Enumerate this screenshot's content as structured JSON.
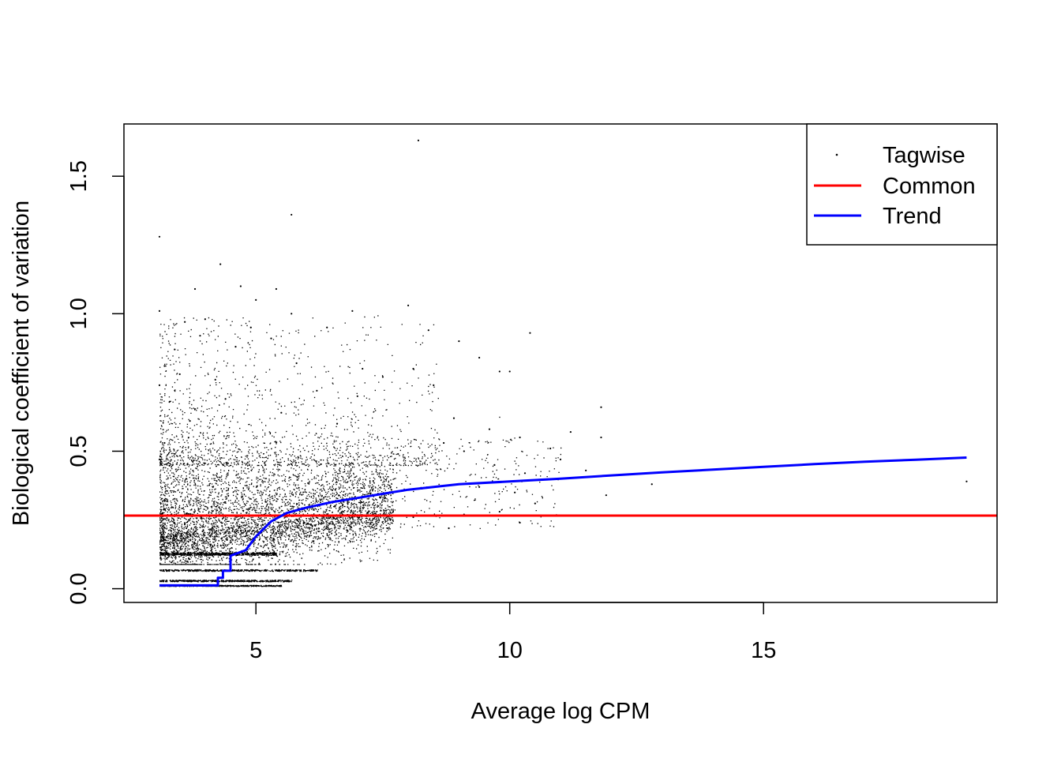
{
  "chart_data": {
    "type": "scatter",
    "title": "",
    "xlabel": "Average log CPM",
    "ylabel": "Biological coefficient of variation",
    "xlim": [
      2.4,
      19.6
    ],
    "ylim": [
      -0.05,
      1.69
    ],
    "x_ticks": [
      {
        "value": 5,
        "label": "5"
      },
      {
        "value": 10,
        "label": "10"
      },
      {
        "value": 15,
        "label": "15"
      }
    ],
    "y_ticks": [
      {
        "value": 0.0,
        "label": "0.0"
      },
      {
        "value": 0.5,
        "label": "0.5"
      },
      {
        "value": 1.0,
        "label": "1.0"
      },
      {
        "value": 1.5,
        "label": "1.5"
      }
    ],
    "grid": false,
    "legend_position": "top-right",
    "series": [
      {
        "name": "Tagwise",
        "kind": "points",
        "color": "#000000",
        "points": [
          [
            8.2,
            1.63
          ],
          [
            3.1,
            1.28
          ],
          [
            5.7,
            1.36
          ],
          [
            4.3,
            1.18
          ],
          [
            4.7,
            1.1
          ],
          [
            5.4,
            1.09
          ],
          [
            3.8,
            1.09
          ],
          [
            5.0,
            1.05
          ],
          [
            8.0,
            1.03
          ],
          [
            3.1,
            1.01
          ],
          [
            5.7,
            1.0
          ],
          [
            6.9,
            1.01
          ],
          [
            4.0,
            0.98
          ],
          [
            4.9,
            0.95
          ],
          [
            3.6,
            0.97
          ],
          [
            6.4,
            0.95
          ],
          [
            8.4,
            0.94
          ],
          [
            10.4,
            0.93
          ],
          [
            3.9,
            0.92
          ],
          [
            5.3,
            0.91
          ],
          [
            9.0,
            0.9
          ],
          [
            4.6,
            0.88
          ],
          [
            3.4,
            0.87
          ],
          [
            9.4,
            0.84
          ],
          [
            5.8,
            0.82
          ],
          [
            3.2,
            0.81
          ],
          [
            7.1,
            0.8
          ],
          [
            8.1,
            0.8
          ],
          [
            9.8,
            0.79
          ],
          [
            10.0,
            0.79
          ],
          [
            3.5,
            0.78
          ],
          [
            7.5,
            0.77
          ],
          [
            4.2,
            0.76
          ],
          [
            3.1,
            0.74
          ],
          [
            8.5,
            0.74
          ],
          [
            6.2,
            0.72
          ],
          [
            7.0,
            0.7
          ],
          [
            4.4,
            0.69
          ],
          [
            3.3,
            0.68
          ],
          [
            11.8,
            0.66
          ],
          [
            5.5,
            0.64
          ],
          [
            8.9,
            0.62
          ],
          [
            3.7,
            0.61
          ],
          [
            6.6,
            0.6
          ],
          [
            11.2,
            0.57
          ],
          [
            9.6,
            0.58
          ],
          [
            11.8,
            0.55
          ],
          [
            10.2,
            0.55
          ],
          [
            8.7,
            0.53
          ],
          [
            3.2,
            0.53
          ],
          [
            10.8,
            0.51
          ],
          [
            9.1,
            0.5
          ],
          [
            7.8,
            0.49
          ],
          [
            3.1,
            0.47
          ],
          [
            11.0,
            0.47
          ],
          [
            9.7,
            0.45
          ],
          [
            11.5,
            0.43
          ],
          [
            10.3,
            0.42
          ],
          [
            19.0,
            0.39
          ],
          [
            12.8,
            0.38
          ],
          [
            9.4,
            0.37
          ],
          [
            10.1,
            0.35
          ],
          [
            11.9,
            0.34
          ],
          [
            10.5,
            0.31
          ],
          [
            9.8,
            0.28
          ],
          [
            10.2,
            0.24
          ],
          [
            8.1,
            0.26
          ],
          [
            8.8,
            0.22
          ],
          [
            7.6,
            0.22
          ],
          [
            9.1,
            0.27
          ]
        ]
      },
      {
        "name": "Common",
        "kind": "hline",
        "color": "#ff0000",
        "y": 0.266
      },
      {
        "name": "Trend",
        "kind": "line",
        "color": "#0000ff",
        "x": [
          3.1,
          4.25,
          4.25,
          4.35,
          4.35,
          4.5,
          4.5,
          4.8,
          5.0,
          5.3,
          5.6,
          6.0,
          6.5,
          7.0,
          7.5,
          8.0,
          8.5,
          9.0,
          10.0,
          11.0,
          12.0,
          13.0,
          14.0,
          15.0,
          16.0,
          17.0,
          18.0,
          19.0
        ],
        "y": [
          0.012,
          0.012,
          0.04,
          0.04,
          0.065,
          0.065,
          0.12,
          0.14,
          0.19,
          0.245,
          0.275,
          0.295,
          0.315,
          0.33,
          0.345,
          0.36,
          0.37,
          0.38,
          0.39,
          0.4,
          0.412,
          0.423,
          0.433,
          0.443,
          0.453,
          0.462,
          0.469,
          0.477
        ]
      }
    ]
  }
}
